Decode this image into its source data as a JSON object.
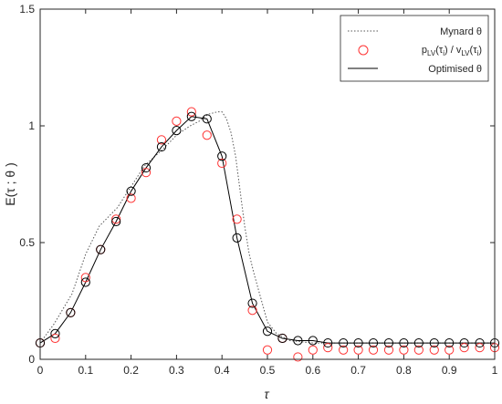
{
  "chart_data": {
    "type": "line",
    "title": "",
    "xlabel": "τ",
    "ylabel": "E(τ ; θ )",
    "xlim": [
      0,
      1
    ],
    "ylim": [
      0,
      1.5
    ],
    "xticks": [
      0,
      0.1,
      0.2,
      0.3,
      0.4,
      0.5,
      0.6,
      0.7,
      0.8,
      0.9,
      1
    ],
    "xtick_labels": [
      "0",
      "0.1",
      "0.2",
      "0.3",
      "0.4",
      "0.5",
      "0.6",
      "0.7",
      "0.8",
      "0.9",
      "1"
    ],
    "yticks": [
      0,
      0.5,
      1,
      1.5
    ],
    "ytick_labels": [
      "0",
      "0.5",
      "1",
      "1.5"
    ],
    "grid": false,
    "legend_position": "top-right",
    "legend": {
      "mynard": "Mynard θ",
      "ratio_p": "p",
      "ratio_p_sub": "LV",
      "ratio_p_arg": "(τ",
      "ratio_p_arg_sub": "i",
      "ratio_mid": ") / v",
      "ratio_v_sub": "LV",
      "ratio_v_arg": "(τ",
      "ratio_v_arg_sub": "i",
      "ratio_end": ")",
      "optimised": "Optimised θ"
    },
    "series": [
      {
        "key": "mynard",
        "style": "dotted",
        "color": "#555555",
        "x": [
          0,
          0.03,
          0.07,
          0.1,
          0.13,
          0.17,
          0.2,
          0.23,
          0.27,
          0.3,
          0.33,
          0.35,
          0.37,
          0.39,
          0.4,
          0.41,
          0.42,
          0.43,
          0.44,
          0.45,
          0.46,
          0.47,
          0.48,
          0.49,
          0.5,
          0.52,
          0.55,
          0.6,
          0.7,
          0.8,
          0.9,
          1.0
        ],
        "y": [
          0.07,
          0.15,
          0.28,
          0.45,
          0.57,
          0.65,
          0.74,
          0.83,
          0.9,
          0.96,
          1.0,
          1.02,
          1.05,
          1.06,
          1.06,
          1.03,
          0.97,
          0.87,
          0.72,
          0.57,
          0.45,
          0.37,
          0.3,
          0.23,
          0.16,
          0.11,
          0.08,
          0.07,
          0.07,
          0.07,
          0.07,
          0.07
        ]
      },
      {
        "key": "ratio",
        "style": "markers",
        "color": "#ff3333",
        "x": [
          0,
          0.033,
          0.067,
          0.1,
          0.133,
          0.167,
          0.2,
          0.233,
          0.267,
          0.3,
          0.333,
          0.367,
          0.4,
          0.433,
          0.467,
          0.5,
          0.533,
          0.567,
          0.6,
          0.633,
          0.667,
          0.7,
          0.733,
          0.767,
          0.8,
          0.833,
          0.867,
          0.9,
          0.933,
          0.967,
          1.0
        ],
        "y": [
          0.07,
          0.09,
          0.2,
          0.35,
          0.47,
          0.6,
          0.69,
          0.8,
          0.94,
          1.02,
          1.06,
          0.96,
          0.84,
          0.6,
          0.21,
          0.04,
          0.09,
          0.01,
          0.04,
          0.05,
          0.04,
          0.04,
          0.04,
          0.04,
          0.04,
          0.04,
          0.04,
          0.04,
          0.05,
          0.05,
          0.05
        ]
      },
      {
        "key": "optimised",
        "style": "solid",
        "color": "#000000",
        "x": [
          0,
          0.033,
          0.067,
          0.1,
          0.133,
          0.167,
          0.2,
          0.233,
          0.267,
          0.3,
          0.333,
          0.367,
          0.4,
          0.433,
          0.467,
          0.5,
          0.533,
          0.567,
          0.6,
          0.633,
          0.667,
          0.7,
          0.733,
          0.767,
          0.8,
          0.833,
          0.867,
          0.9,
          0.933,
          0.967,
          1.0
        ],
        "y": [
          0.07,
          0.11,
          0.2,
          0.33,
          0.47,
          0.59,
          0.72,
          0.82,
          0.91,
          0.98,
          1.04,
          1.03,
          0.87,
          0.52,
          0.24,
          0.12,
          0.09,
          0.08,
          0.08,
          0.07,
          0.07,
          0.07,
          0.07,
          0.07,
          0.07,
          0.07,
          0.07,
          0.07,
          0.07,
          0.07,
          0.07
        ]
      }
    ]
  }
}
